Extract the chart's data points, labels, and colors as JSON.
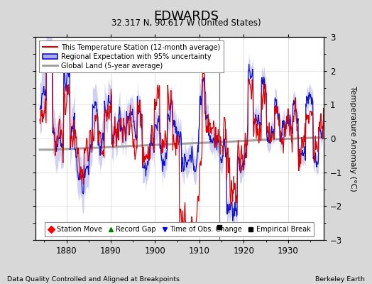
{
  "title": "EDWARDS",
  "subtitle": "32.317 N, 90.617 W (United States)",
  "ylabel": "Temperature Anomaly (°C)",
  "xlabel_left": "Data Quality Controlled and Aligned at Breakpoints",
  "xlabel_right": "Berkeley Earth",
  "xlim": [
    1873,
    1938
  ],
  "ylim": [
    -3,
    3
  ],
  "yticks": [
    -3,
    -2,
    -1,
    0,
    1,
    2,
    3
  ],
  "xticks": [
    1880,
    1890,
    1900,
    1910,
    1920,
    1930
  ],
  "background_color": "#d8d8d8",
  "plot_bg_color": "#ffffff",
  "grid_color": "#bbbbbb",
  "red_line_color": "#dd0000",
  "blue_line_color": "#1111cc",
  "blue_fill_color": "#aaaaee",
  "gray_line_color": "#999999",
  "empirical_break_year": 1914.5,
  "vertical_line_color": "#777777",
  "seed": 12345,
  "n_points": 792
}
